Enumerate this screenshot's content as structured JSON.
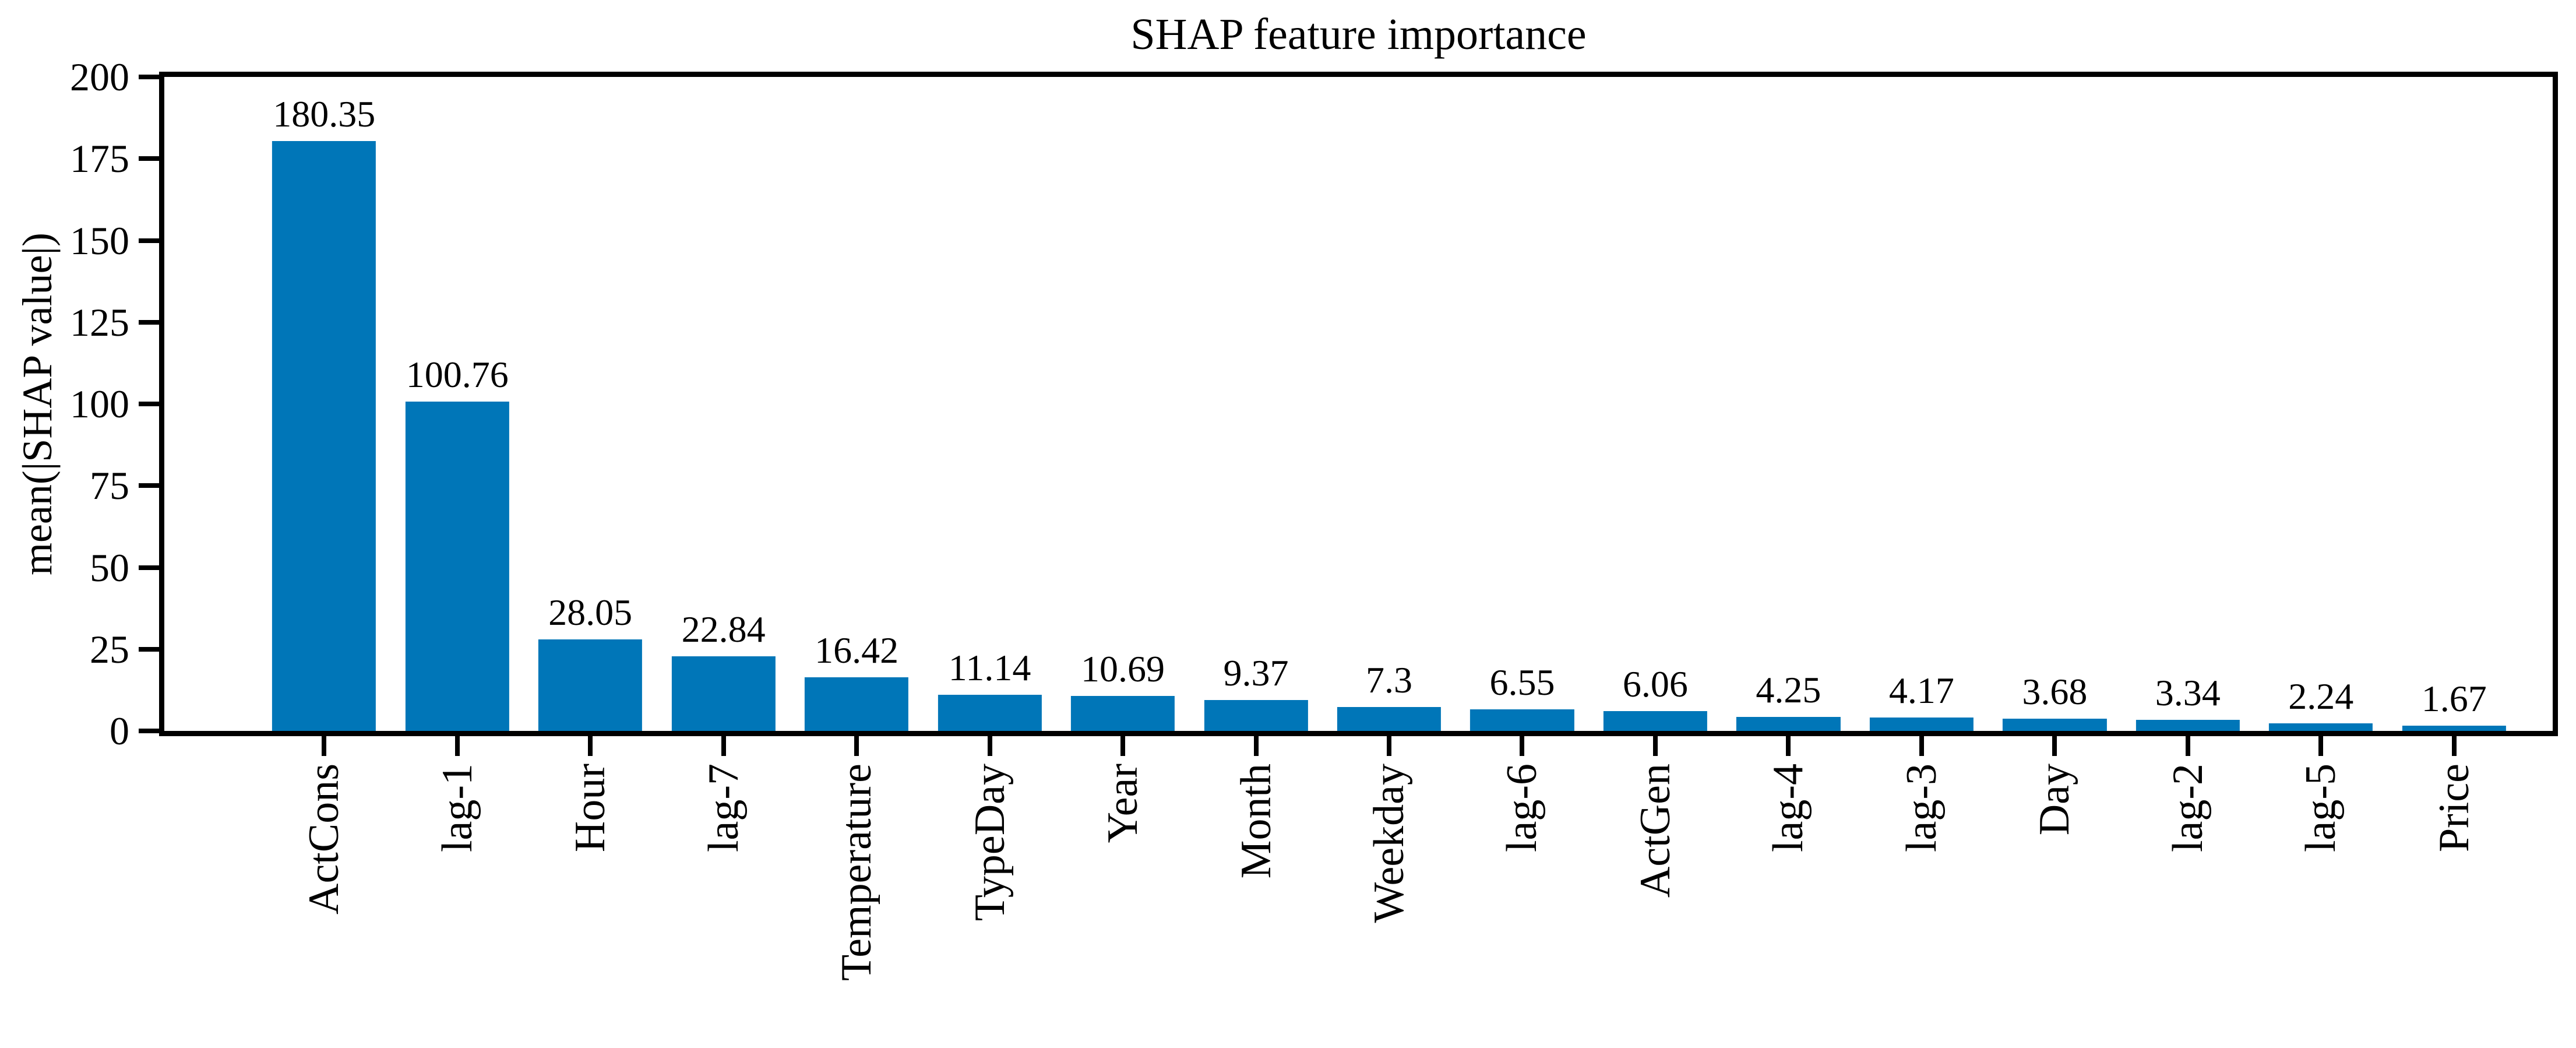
{
  "chart_data": {
    "type": "bar",
    "title": "SHAP feature importance",
    "xlabel": "",
    "ylabel": "mean(|SHAP value|)",
    "categories": [
      "ActCons",
      "lag-1",
      "Hour",
      "lag-7",
      "Temperature",
      "TypeDay",
      "Year",
      "Month",
      "Weekday",
      "lag-6",
      "ActGen",
      "lag-4",
      "lag-3",
      "Day",
      "lag-2",
      "lag-5",
      "Price"
    ],
    "values": [
      180.35,
      100.76,
      28.05,
      22.84,
      16.42,
      11.14,
      10.69,
      9.37,
      7.3,
      6.55,
      6.06,
      4.25,
      4.17,
      3.68,
      3.34,
      2.24,
      1.67
    ],
    "value_labels": [
      "180.35",
      "100.76",
      "28.05",
      "22.84",
      "16.42",
      "11.14",
      "10.69",
      "9.37",
      "7.3",
      "6.55",
      "6.06",
      "4.25",
      "4.17",
      "3.68",
      "3.34",
      "2.24",
      "1.67"
    ],
    "ylim": [
      0,
      200
    ],
    "yticks": [
      0,
      25,
      50,
      75,
      100,
      125,
      150,
      175,
      200
    ],
    "bar_color": "#0076b8",
    "spine_color": "#000000",
    "grid": false,
    "legend": "none",
    "x_tick_rotation_deg": 90
  }
}
